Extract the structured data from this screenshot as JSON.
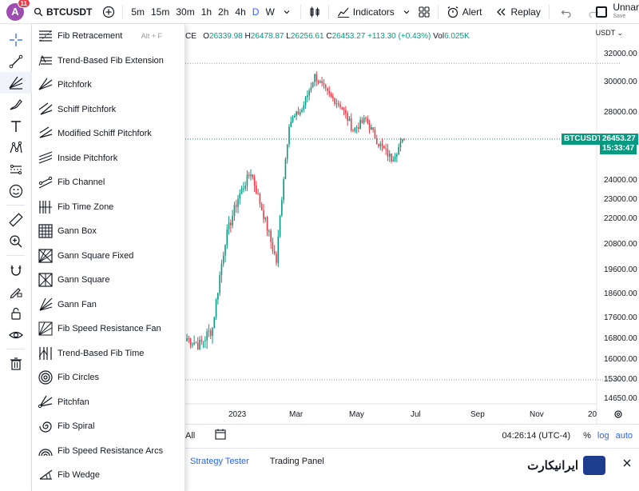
{
  "topbar": {
    "avatar_letter": "A",
    "notification_count": "11",
    "symbol": "BTCUSDT",
    "intervals": [
      "5m",
      "15m",
      "30m",
      "1h",
      "2h",
      "4h",
      "D",
      "W"
    ],
    "active_interval": "D",
    "indicators_label": "Indicators",
    "alert_label": "Alert",
    "replay_label": "Replay",
    "layout_name": "Unnar",
    "save_label": "Save"
  },
  "menu": {
    "items": [
      {
        "label": "Fib Retracement",
        "shortcut": "Alt + F",
        "icon": "fib-retracement-icon"
      },
      {
        "label": "Trend-Based Fib Extension",
        "shortcut": "",
        "icon": "trend-fib-extension-icon"
      },
      {
        "label": "Pitchfork",
        "shortcut": "",
        "icon": "pitchfork-icon"
      },
      {
        "label": "Schiff Pitchfork",
        "shortcut": "",
        "icon": "schiff-pitchfork-icon"
      },
      {
        "label": "Modified Schiff Pitchfork",
        "shortcut": "",
        "icon": "modified-schiff-pitchfork-icon"
      },
      {
        "label": "Inside Pitchfork",
        "shortcut": "",
        "icon": "inside-pitchfork-icon"
      },
      {
        "label": "Fib Channel",
        "shortcut": "",
        "icon": "fib-channel-icon"
      },
      {
        "label": "Fib Time Zone",
        "shortcut": "",
        "icon": "fib-time-zone-icon"
      },
      {
        "label": "Gann Box",
        "shortcut": "",
        "icon": "gann-box-icon"
      },
      {
        "label": "Gann Square Fixed",
        "shortcut": "",
        "icon": "gann-square-fixed-icon"
      },
      {
        "label": "Gann Square",
        "shortcut": "",
        "icon": "gann-square-icon"
      },
      {
        "label": "Gann Fan",
        "shortcut": "",
        "icon": "gann-fan-icon"
      },
      {
        "label": "Fib Speed Resistance Fan",
        "shortcut": "",
        "icon": "fib-speed-resistance-fan-icon"
      },
      {
        "label": "Trend-Based Fib Time",
        "shortcut": "",
        "icon": "trend-fib-time-icon"
      },
      {
        "label": "Fib Circles",
        "shortcut": "",
        "icon": "fib-circles-icon"
      },
      {
        "label": "Pitchfan",
        "shortcut": "",
        "icon": "pitchfan-icon"
      },
      {
        "label": "Fib Spiral",
        "shortcut": "",
        "icon": "fib-spiral-icon"
      },
      {
        "label": "Fib Speed Resistance Arcs",
        "shortcut": "",
        "icon": "fib-speed-resistance-arcs-icon"
      },
      {
        "label": "Fib Wedge",
        "shortcut": "",
        "icon": "fib-wedge-icon"
      }
    ]
  },
  "legend": {
    "exchange_suffix": "CE",
    "open_label": "O",
    "open": "26339.98",
    "high_label": "H",
    "high": "26478.87",
    "low_label": "L",
    "low": "26256.61",
    "close_label": "C",
    "close": "26453.27",
    "change": "+113.30 (+0.43%)",
    "vol_label": "Vol",
    "volume": "6.025K"
  },
  "price_axis": {
    "currency": "USDT",
    "ticks": [
      "32000.00",
      "30000.00",
      "28000.00",
      "24000.00",
      "23000.00",
      "22000.00",
      "20800.00",
      "19600.00",
      "18600.00",
      "17600.00",
      "16800.00",
      "16000.00",
      "15300.00",
      "14650.00"
    ],
    "last_symbol": "BTCUSDT",
    "last_price": "26453.27",
    "countdown": "15:33:47"
  },
  "time_axis": {
    "labels": [
      "2023",
      "Mar",
      "May",
      "Jul",
      "Sep",
      "Nov",
      "20"
    ]
  },
  "bottombar": {
    "range_label": "All",
    "clock": "04:26:14 (UTC-4)",
    "percent_label": "%",
    "log_label": "log",
    "auto_label": "auto"
  },
  "panels": {
    "tabs": [
      "Strategy Tester",
      "Trading Panel"
    ]
  },
  "brand": {
    "logo_text": "ایرانیکارت"
  },
  "colors": {
    "up": "#089981",
    "down": "#f23645",
    "accent": "#2962ff"
  },
  "chart_data": {
    "type": "candlestick",
    "title": "BTCUSDT",
    "x_labels": [
      "2023",
      "Mar",
      "May",
      "Jul",
      "Sep",
      "Nov"
    ],
    "series": [
      {
        "name": "BTCUSDT",
        "close_points": [
          {
            "x": "Dec",
            "y": 16800
          },
          {
            "x": "Jan",
            "y": 16550
          },
          {
            "x": "Jan",
            "y": 17200
          },
          {
            "x": "Jan",
            "y": 21000
          },
          {
            "x": "Feb",
            "y": 23100
          },
          {
            "x": "Feb",
            "y": 24500
          },
          {
            "x": "Mar",
            "y": 22200
          },
          {
            "x": "Mar",
            "y": 20000
          },
          {
            "x": "Mar",
            "y": 27400
          },
          {
            "x": "Apr",
            "y": 28200
          },
          {
            "x": "Apr",
            "y": 30400
          },
          {
            "x": "Apr",
            "y": 29200
          },
          {
            "x": "May",
            "y": 28500
          },
          {
            "x": "May",
            "y": 27000
          },
          {
            "x": "May",
            "y": 27600
          },
          {
            "x": "Jun",
            "y": 26200
          },
          {
            "x": "Jun",
            "y": 25300
          },
          {
            "x": "Jun",
            "y": 26453
          }
        ]
      }
    ],
    "hlines": [
      31300,
      15300
    ],
    "last_price": 26453.27
  }
}
